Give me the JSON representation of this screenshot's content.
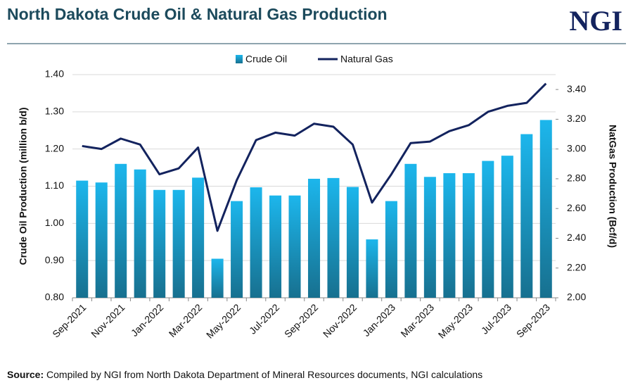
{
  "header": {
    "title": "North Dakota Crude Oil & Natural Gas Production",
    "logo": "NGI"
  },
  "chart_data": {
    "type": "bar-line",
    "categories": [
      "Sep-2021",
      null,
      "Nov-2021",
      null,
      "Jan-2022",
      null,
      "Mar-2022",
      null,
      "May-2022",
      null,
      "Jul-2022",
      null,
      "Sep-2022",
      null,
      "Nov-2022",
      null,
      "Jan-2023",
      null,
      "Mar-2023",
      null,
      "May-2023",
      null,
      "Jul-2023",
      null,
      "Sep-2023"
    ],
    "series": [
      {
        "name": "Crude Oil",
        "type": "bar",
        "color": "#1cb6ec",
        "values": [
          1.115,
          1.11,
          1.16,
          1.145,
          1.09,
          1.09,
          1.123,
          0.905,
          1.06,
          1.097,
          1.075,
          1.075,
          1.12,
          1.122,
          1.098,
          0.957,
          1.06,
          1.16,
          1.125,
          1.135,
          1.135,
          1.168,
          1.182,
          1.24,
          1.278
        ]
      },
      {
        "name": "Natural Gas",
        "type": "line",
        "axis": "y2",
        "color": "#13235e",
        "values": [
          3.02,
          3.0,
          3.07,
          3.03,
          2.83,
          2.87,
          3.01,
          2.45,
          2.79,
          3.06,
          3.11,
          3.09,
          3.17,
          3.15,
          3.03,
          2.64,
          2.83,
          3.04,
          3.05,
          3.12,
          3.16,
          3.25,
          3.29,
          3.31,
          3.44
        ]
      }
    ],
    "ylabel": "Crude Oil Production (million b/d)",
    "y2label": "NatGas Production  (Bcf/d)",
    "ylim": [
      0.8,
      1.4
    ],
    "yticks": [
      {
        "value": 0.8,
        "label": "0.80"
      },
      {
        "value": 0.9,
        "label": "0.90"
      },
      {
        "value": 1.0,
        "label": "1.00"
      },
      {
        "value": 1.1,
        "label": "1.10"
      },
      {
        "value": 1.2,
        "label": "1.20"
      },
      {
        "value": 1.3,
        "label": "1.30"
      },
      {
        "value": 1.4,
        "label": "1.40"
      }
    ],
    "y2lim": [
      2.0,
      3.5
    ],
    "y2ticks": [
      {
        "value": 2.0,
        "label": "2.00"
      },
      {
        "value": 2.2,
        "label": "2.20"
      },
      {
        "value": 2.4,
        "label": "2.40"
      },
      {
        "value": 2.6,
        "label": "2.60"
      },
      {
        "value": 2.8,
        "label": "2.80"
      },
      {
        "value": 3.0,
        "label": "3.00"
      },
      {
        "value": 3.2,
        "label": "3.20"
      },
      {
        "value": 3.4,
        "label": "3.40"
      }
    ],
    "grid": true,
    "legend": "top"
  },
  "footer": {
    "source_label": "Source:",
    "source_text": "Compiled by NGI from North Dakota Department of Mineral Resources documents, NGI calculations"
  }
}
